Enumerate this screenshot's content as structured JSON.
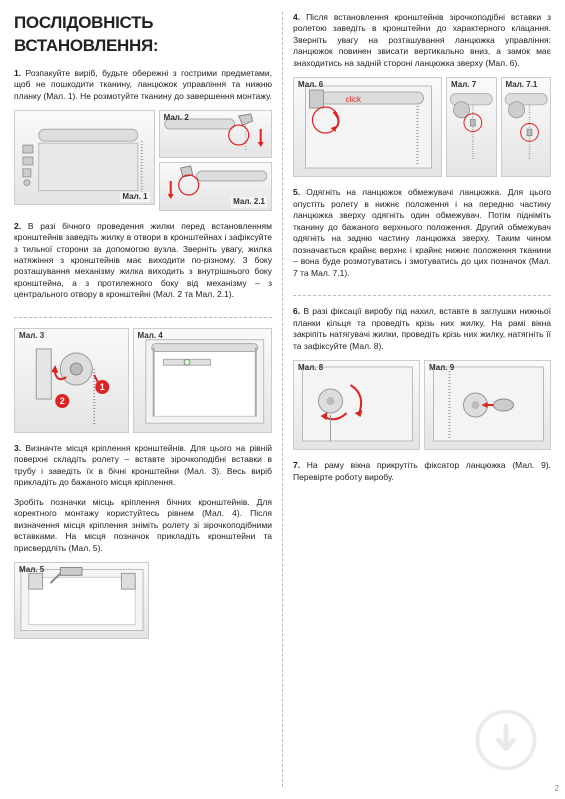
{
  "title": "ПОСЛІДОВНІСТЬ ВСТАНОВЛЕННЯ:",
  "left": {
    "p1": "1. Розпакуйте виріб, будьте обережні з гострими предметами, щоб не пошкодити тканину, ланцюжок управління та нижню планку (Мал. 1). Не розмотуйте тканину до завершення монтажу.",
    "p2": "2. В разі бічного проведення жилки перед встановленням кронштейнів заведіть жилку в отвори в кронштейнах і зафіксуйте з тильної сторони за допомогою вузла. Зверніть увагу, жилка натяжіння з кронштейнів має виходити по-різному. З боку розташування механізму жилка виходить з внутрішнього боку кронштейна, а з протилежного боку від механізму – з центрального отвору в кронштейні (Мал. 2 та Мал. 2.1).",
    "p3a": "3. Визначте місця кріплення кронштейнів. Для цього на рівній поверхні складіть ролету – вставте зірочкоподібні вставки в трубу і заведіть їх в бічні кронштейни (Мал. 3). Весь виріб прикладіть до бажаного місця кріплення.",
    "p3b": "Зробіть позначки місць кріплення бічних кронштейнів. Для коректного монтажу користуйтесь рівнем (Мал. 4). Після визначення місця кріплення зніміть ролету зі зірочкоподібними вставками. На місця позначок прикладіть кронштейни та присвердліть (Мал. 5).",
    "fig1": "Мал. 1",
    "fig2": "Мал. 2",
    "fig21": "Мал. 2.1",
    "fig3": "Мал. 3",
    "fig4": "Мал. 4",
    "fig5": "Мал. 5"
  },
  "right": {
    "p4": "4. Після встановлення кронштейнів зірочкоподібні вставки з ролетою заведіть в кронштейни до характерного клацання. Зверніть увагу на розташування ланцюжка управління: ланцюжок повинен звисати вертикально вниз, а замок має знаходитись на задній стороні ланцюжка зверху (Мал. 6).",
    "p5": "5. Одягніть на ланцюжок обмежувачі ланцюжка. Для цього опустіть ролету в нижнє положення і на передню частину ланцюжка зверху одягніть один обмежувач. Потім підніміть тканину до бажаного верхнього положення. Другий обмежувач одягніть на задню частину ланцюжка зверху. Таким чином позначається крайнє верхнє і крайнє нижнє положення тканини – вона буде розмотуватись і змотуватись до цих позначок (Мал. 7 та Мал. 7.1).",
    "p6": "6. В разі фіксації виробу під нахил, вставте в заглушки нижньої планки кільця та проведіть крізь них жилку. На рамі вікна закріпіть натягувачі жилки, проведіть крізь них жилку, натягніть її та зафіксуйте (Мал. 8).",
    "p7": "7. На раму вікна прикрутіть фіксатор ланцюжка (Мал. 9). Перевірте роботу виробу.",
    "fig6": "Мал. 6",
    "fig7": "Мал. 7",
    "fig71": "Мал. 7.1",
    "fig8": "Мал. 8",
    "fig9": "Мал. 9",
    "click": "click"
  },
  "pageNumber": "2",
  "colors": {
    "accent": "#d22",
    "border": "#bbb"
  }
}
